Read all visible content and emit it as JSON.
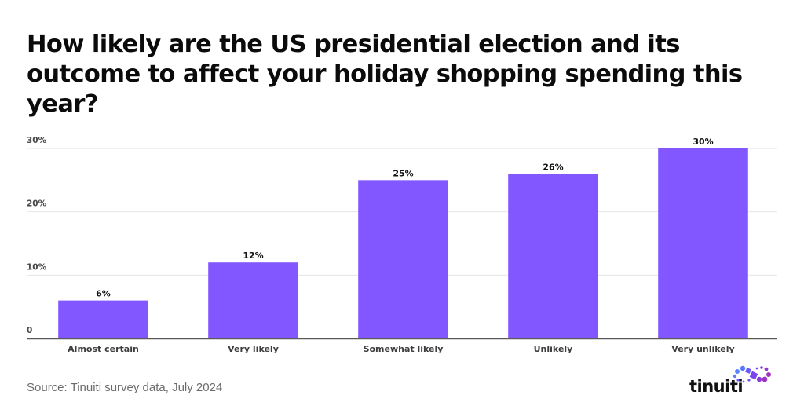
{
  "title": "How likely are the US presidential election and its outcome to affect your holiday shopping spending this year?",
  "source": "Source: Tinuiti survey data, July 2024",
  "logo": {
    "text": "tinuiti",
    "icon": "tinuiti-infinity-dots-logo-icon"
  },
  "colors": {
    "bar": "#8357FF",
    "grid": "#e6e6e6",
    "axis": "#5a5a5a"
  },
  "chart_data": {
    "type": "bar",
    "title": "How likely are the US presidential election and its outcome to affect your holiday shopping spending this year?",
    "xlabel": "",
    "ylabel": "",
    "categories": [
      "Almost certain",
      "Very likely",
      "Somewhat likely",
      "Unlikely",
      "Very unlikely"
    ],
    "values": [
      6,
      12,
      25,
      26,
      30
    ],
    "data_labels": [
      "6%",
      "12%",
      "25%",
      "26%",
      "30%"
    ],
    "ylim": [
      0,
      30
    ],
    "yticks": [
      0,
      10,
      20,
      30
    ],
    "ytick_labels": [
      "0",
      "10%",
      "20%",
      "30%"
    ],
    "grid": true,
    "legend": "none",
    "unit": "%"
  }
}
